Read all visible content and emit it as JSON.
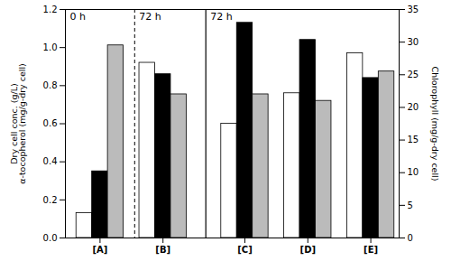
{
  "chart_data": {
    "type": "bar",
    "categories": [
      "[A]",
      "[B]",
      "[C]",
      "[D]",
      "[E]"
    ],
    "series": [
      {
        "name": "Dry cell conc. (g/L)",
        "color": "#ffffff",
        "values": [
          0.13,
          0.92,
          0.6,
          0.76,
          0.97
        ]
      },
      {
        "name": "α-tocopherol (mg/g-dry cell)",
        "color": "#000000",
        "values": [
          0.35,
          0.86,
          1.13,
          1.04,
          0.84
        ]
      },
      {
        "name": "Chlorophyll (mg/g-dry cell)",
        "color": "#bbbbbb",
        "values": [
          29.5,
          22.0,
          22.0,
          21.0,
          25.5
        ],
        "axis": "y2"
      }
    ],
    "ylim": [
      0,
      1.2
    ],
    "yticks": [
      {
        "value": 0,
        "label": "0.0"
      },
      0.2,
      0.4,
      0.6,
      0.8,
      {
        "value": 1.0,
        "label": "1.0"
      },
      1.2
    ],
    "y2lim": [
      0,
      35
    ],
    "y2ticks": [
      0,
      5,
      10,
      15,
      20,
      25,
      30,
      35
    ],
    "annotations": [
      "0 h",
      "72 h",
      "72 h"
    ],
    "grid": false
  }
}
